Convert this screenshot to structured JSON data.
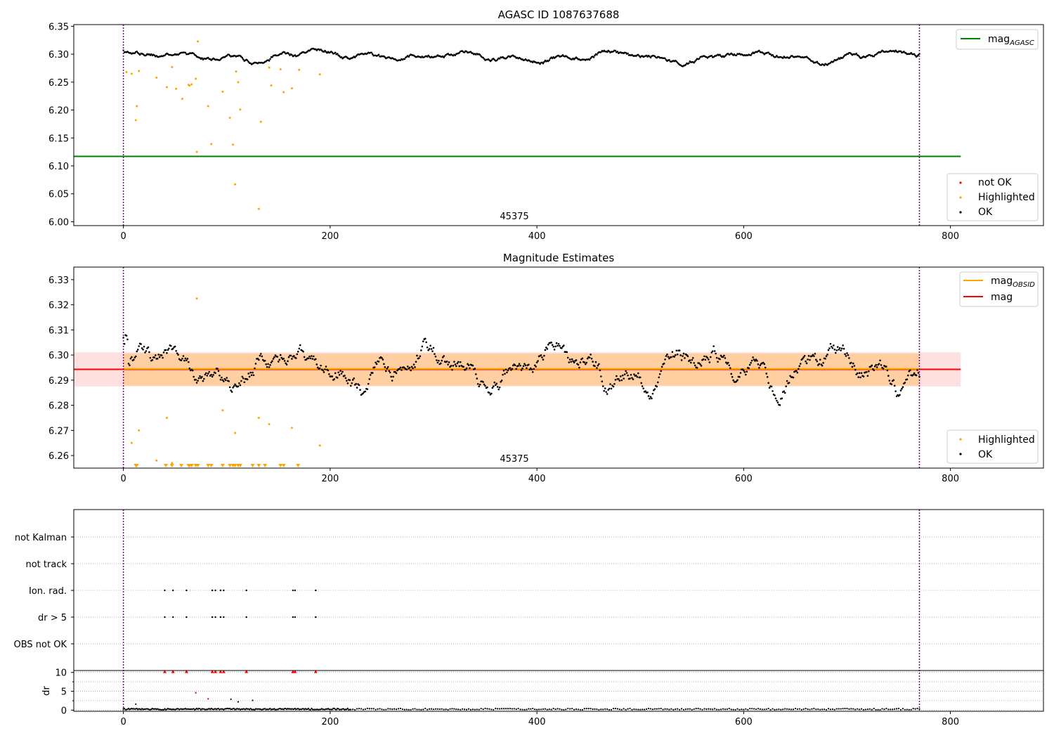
{
  "figure": {
    "background": "#ffffff"
  },
  "chart_data": [
    {
      "type": "scatter",
      "title": "AGASC ID 1087637688",
      "xlabel": "",
      "ylabel": "",
      "xlim": [
        -48,
        890
      ],
      "ylim": [
        5.993,
        6.353
      ],
      "xticks": [
        0,
        200,
        400,
        600,
        800
      ],
      "yticks": [
        6.0,
        6.05,
        6.1,
        6.15,
        6.2,
        6.25,
        6.3,
        6.35
      ],
      "ytick_labels": [
        "6.00",
        "6.05",
        "6.10",
        "6.15",
        "6.20",
        "6.25",
        "6.30",
        "6.35"
      ],
      "obsid_label": "45375",
      "obsid_label_x": 385,
      "obs_boundaries": [
        0,
        770
      ],
      "ok_trend": {
        "x_end": 770,
        "mean": 6.2955
      },
      "agasc_line": {
        "label_main": "mag",
        "label_sub": "AGASC",
        "value": 6.117,
        "x": [
          -48,
          810
        ],
        "color": "#008000"
      },
      "highlighted": {
        "x": [
          3,
          8,
          12,
          13,
          15,
          32,
          42,
          47,
          51,
          57,
          63,
          64,
          66,
          70,
          71,
          72,
          82,
          85,
          96,
          103,
          106,
          108,
          109,
          111,
          113,
          131,
          133,
          141,
          143,
          152,
          155,
          163,
          170,
          190
        ],
        "y": [
          6.268,
          6.265,
          6.182,
          6.207,
          6.27,
          6.258,
          6.241,
          6.277,
          6.238,
          6.22,
          6.245,
          6.244,
          6.246,
          6.256,
          6.125,
          6.323,
          6.207,
          6.139,
          6.233,
          6.186,
          6.138,
          6.067,
          6.269,
          6.25,
          6.201,
          6.023,
          6.179,
          6.276,
          6.244,
          6.273,
          6.232,
          6.239,
          6.272,
          6.264
        ],
        "color": "#ffa500"
      },
      "legend_lines": [
        {
          "label": "mag",
          "sub": "AGASC",
          "color": "#008000"
        }
      ],
      "legend_points": [
        {
          "label": "not OK",
          "color": "#ff0000"
        },
        {
          "label": "Highlighted",
          "color": "#ffa500"
        },
        {
          "label": "OK",
          "color": "#000000"
        }
      ]
    },
    {
      "type": "scatter",
      "title": "Magnitude Estimates",
      "xlabel": "",
      "ylabel": "",
      "xlim": [
        -48,
        890
      ],
      "ylim": [
        6.255,
        6.335
      ],
      "xticks": [
        0,
        200,
        400,
        600,
        800
      ],
      "yticks": [
        6.26,
        6.27,
        6.28,
        6.29,
        6.3,
        6.31,
        6.32,
        6.33
      ],
      "ytick_labels": [
        "6.26",
        "6.27",
        "6.28",
        "6.29",
        "6.30",
        "6.31",
        "6.32",
        "6.33"
      ],
      "obsid_label": "45375",
      "obsid_label_x": 385,
      "obs_boundaries": [
        0,
        770
      ],
      "mag": {
        "value": 6.2943,
        "band": [
          6.2875,
          6.3011
        ],
        "x": [
          -48,
          810
        ],
        "color": "#ff0000"
      },
      "mag_obsid": {
        "value": 6.2945,
        "band": [
          6.2878,
          6.3006
        ],
        "x": [
          0,
          770
        ],
        "color": "#ffa500"
      },
      "highlighted": {
        "x": [
          8,
          15,
          32,
          42,
          47,
          96,
          108,
          131,
          141,
          163,
          190
        ],
        "y": [
          6.265,
          6.27,
          6.258,
          6.275,
          6.257,
          6.278,
          6.269,
          6.275,
          6.2725,
          6.271,
          6.264
        ],
        "color": "#ffa500"
      },
      "clipped_low": {
        "x": [
          12,
          13,
          41,
          47,
          56,
          63,
          64,
          66,
          70,
          72,
          82,
          85,
          96,
          103,
          106,
          108,
          111,
          113,
          125,
          131,
          137,
          152,
          155,
          169
        ],
        "color": "#ffa500"
      },
      "legend_lines": [
        {
          "label": "mag",
          "sub": "OBSID",
          "color": "#ffa500"
        },
        {
          "label": "mag",
          "sub": "",
          "color": "#ff0000"
        }
      ],
      "legend_points": [
        {
          "label": "Highlighted",
          "color": "#ffa500"
        },
        {
          "label": "OK",
          "color": "#000000"
        }
      ]
    },
    {
      "type": "scatter",
      "title": "",
      "xlabel": "",
      "ylabel": "dr",
      "xlim": [
        -48,
        890
      ],
      "xticks": [
        0,
        200,
        400,
        600,
        800
      ],
      "flag_categories": [
        "OBS not OK",
        "dr > 5",
        "Ion. rad.",
        "not track",
        "not Kalman"
      ],
      "flag_points": {
        "dr > 5": [
          40,
          48,
          61,
          86,
          89,
          94,
          97,
          119,
          164,
          166,
          186
        ],
        "Ion. rad.": [
          40,
          48,
          61,
          86,
          89,
          94,
          97,
          119,
          164,
          166,
          186
        ]
      },
      "dr_ylim": [
        -0.3,
        10.5
      ],
      "dr_yticks": [
        0,
        5,
        10
      ],
      "dr_clipped_x": [
        40,
        48,
        61,
        86,
        89,
        94,
        97,
        119,
        164,
        166,
        186
      ],
      "dr_red_points": {
        "x": [
          70,
          82
        ],
        "y": [
          4.6,
          3.0
        ]
      },
      "dr_spikes": {
        "x": [
          12,
          104,
          111,
          125
        ],
        "y": [
          1.6,
          2.9,
          2.2,
          2.6
        ]
      },
      "obs_boundaries": [
        0,
        770
      ]
    }
  ]
}
